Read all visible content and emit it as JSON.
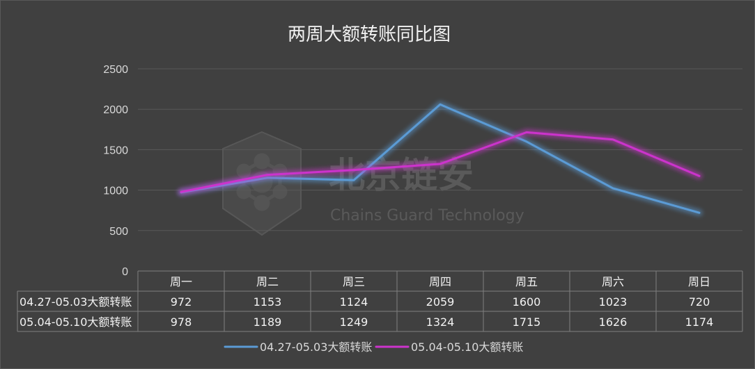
{
  "chart_data": {
    "type": "line",
    "title": "两周大额转账同比图",
    "categories": [
      "周一",
      "周二",
      "周三",
      "周四",
      "周五",
      "周六",
      "周日"
    ],
    "series": [
      {
        "name": "04.27-05.03大额转账",
        "values": [
          972,
          1153,
          1124,
          2059,
          1600,
          1023,
          720
        ],
        "color": "#5b9bd5"
      },
      {
        "name": "05.04-05.10大额转账",
        "values": [
          978,
          1189,
          1249,
          1324,
          1715,
          1626,
          1174
        ],
        "color": "#cc33cc"
      }
    ],
    "ylim": [
      0,
      2500
    ],
    "yticks": [
      0,
      500,
      1000,
      1500,
      2000,
      2500
    ],
    "grid": true,
    "legend": "bottom",
    "data_table": true
  },
  "watermark": {
    "cn": "北京链安",
    "en": "Chains Guard Technology"
  }
}
